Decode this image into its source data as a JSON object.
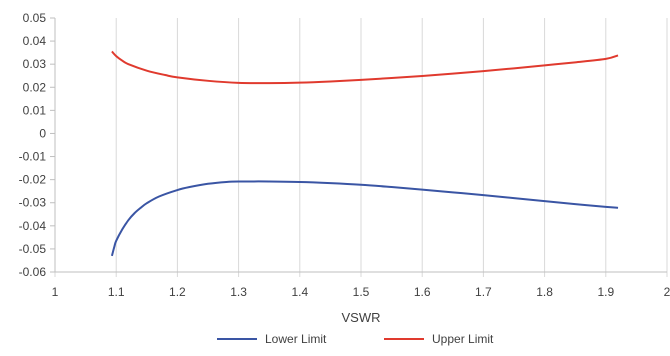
{
  "chart_data": {
    "type": "line",
    "xlabel": "VSWR",
    "ylabel": "",
    "xlim": [
      1,
      2
    ],
    "ylim": [
      -0.06,
      0.05
    ],
    "x_ticks": [
      "1",
      "1.1",
      "1.2",
      "1.3",
      "1.4",
      "1.5",
      "1.6",
      "1.7",
      "1.8",
      "1.9",
      "2"
    ],
    "y_ticks": [
      "0.05",
      "0.04",
      "0.03",
      "0.02",
      "0.01",
      "0",
      "-0.01",
      "-0.02",
      "-0.03",
      "-0.04",
      "-0.05",
      "-0.06"
    ],
    "grid": "vertical",
    "legend_position": "bottom",
    "series": [
      {
        "name": "Lower Limit",
        "color": "#3a55a4",
        "x": [
          1.093,
          1.097,
          1.1,
          1.11,
          1.12,
          1.13,
          1.14,
          1.15,
          1.17,
          1.2,
          1.22,
          1.25,
          1.28,
          1.3,
          1.35,
          1.4,
          1.45,
          1.5,
          1.55,
          1.6,
          1.65,
          1.7,
          1.75,
          1.8,
          1.85,
          1.9,
          1.92
        ],
        "y": [
          -0.053,
          -0.049,
          -0.0465,
          -0.0415,
          -0.0375,
          -0.0345,
          -0.0322,
          -0.0302,
          -0.0273,
          -0.0245,
          -0.0232,
          -0.0218,
          -0.021,
          -0.0208,
          -0.0208,
          -0.021,
          -0.0215,
          -0.0222,
          -0.0232,
          -0.0243,
          -0.0255,
          -0.0267,
          -0.028,
          -0.0293,
          -0.0306,
          -0.0318,
          -0.0322
        ]
      },
      {
        "name": "Upper Limit",
        "color": "#e03a2e",
        "x": [
          1.093,
          1.1,
          1.11,
          1.12,
          1.15,
          1.18,
          1.2,
          1.25,
          1.3,
          1.35,
          1.4,
          1.45,
          1.5,
          1.55,
          1.6,
          1.65,
          1.7,
          1.75,
          1.8,
          1.85,
          1.9,
          1.92
        ],
        "y": [
          0.0355,
          0.0335,
          0.0315,
          0.03,
          0.0272,
          0.0253,
          0.0243,
          0.0228,
          0.0219,
          0.0218,
          0.022,
          0.0225,
          0.0232,
          0.024,
          0.0249,
          0.0259,
          0.027,
          0.0282,
          0.0295,
          0.0308,
          0.0323,
          0.0338
        ]
      }
    ]
  }
}
